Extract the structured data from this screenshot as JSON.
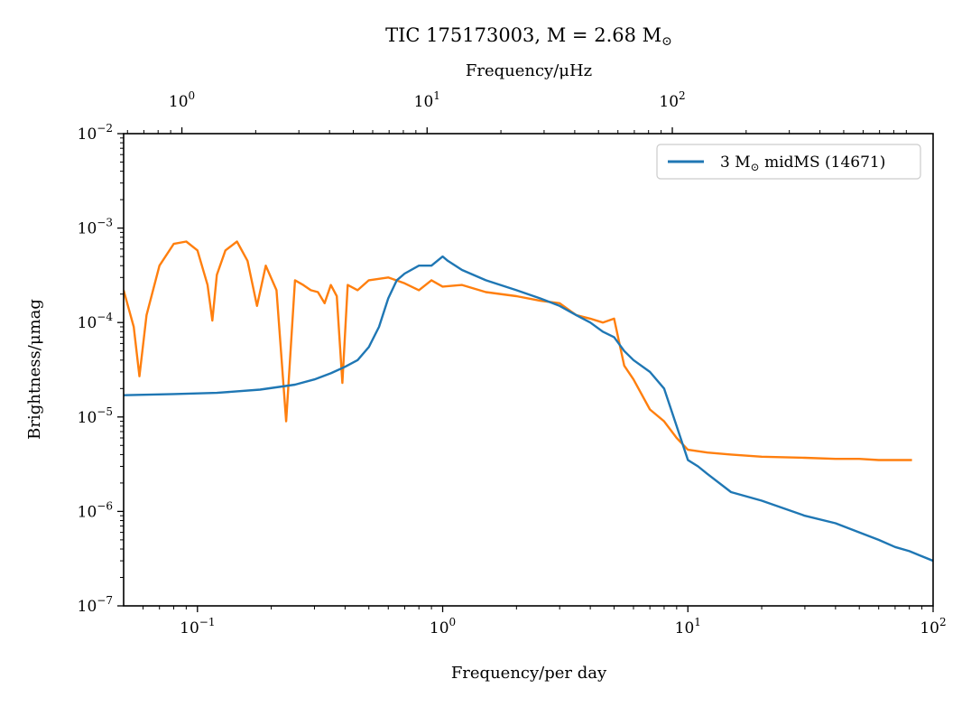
{
  "chart_data": {
    "type": "line",
    "title": "TIC 175173003, M = 2.68 M",
    "xlabel": "Frequency/per day",
    "ylabel": "Brightness/μmag",
    "top_xlabel": "Frequency/μHz",
    "xscale": "log",
    "yscale": "log",
    "xlim": [
      0.05,
      100
    ],
    "ylim": [
      1e-07,
      0.01
    ],
    "top_xlim_uHz": [
      0.5787,
      1157.4
    ],
    "x_tick_labels": [
      "10",
      "10",
      "10",
      "10"
    ],
    "x_tick_exponents": [
      "−1",
      "0",
      "1",
      "2"
    ],
    "x_ticks": [
      0.1,
      1,
      10,
      100
    ],
    "top_tick_labels": [
      "10",
      "10",
      "10"
    ],
    "top_tick_exponents": [
      "0",
      "1",
      "2"
    ],
    "top_ticks_uHz": [
      1,
      10,
      100
    ],
    "y_tick_labels": [
      "10",
      "10",
      "10",
      "10",
      "10",
      "10"
    ],
    "y_tick_exponents": [
      "−7",
      "−6",
      "−5",
      "−4",
      "−3",
      "−2"
    ],
    "y_ticks": [
      1e-07,
      1e-06,
      1e-05,
      0.0001,
      0.001,
      0.01
    ],
    "legend": {
      "placement": "top-right",
      "entries": [
        {
          "prefix": "3 M",
          "suffix": " midMS (14671)",
          "color": "#1f77b4"
        }
      ]
    },
    "series": [
      {
        "color": "#ff7f0e",
        "description_points": "observed periodogram (noisy)",
        "x": [
          0.05,
          0.055,
          0.058,
          0.062,
          0.07,
          0.08,
          0.09,
          0.1,
          0.11,
          0.115,
          0.12,
          0.13,
          0.145,
          0.16,
          0.175,
          0.19,
          0.21,
          0.23,
          0.25,
          0.27,
          0.29,
          0.31,
          0.33,
          0.35,
          0.37,
          0.39,
          0.41,
          0.45,
          0.5,
          0.6,
          0.7,
          0.8,
          0.9,
          1.0,
          1.2,
          1.5,
          2.0,
          2.5,
          3.0,
          3.5,
          4.0,
          4.5,
          5.0,
          5.5,
          6.0,
          7.0,
          8.0,
          9.0,
          10,
          12,
          15,
          20,
          30,
          40,
          50,
          60,
          70,
          82
        ],
        "y": [
          0.00022,
          9e-05,
          2.7e-05,
          0.00012,
          0.0004,
          0.00068,
          0.00072,
          0.00058,
          0.00025,
          0.000105,
          0.00032,
          0.00058,
          0.00072,
          0.00045,
          0.00015,
          0.0004,
          0.00022,
          9e-06,
          0.00028,
          0.00025,
          0.00022,
          0.00021,
          0.00016,
          0.00025,
          0.00019,
          2.3e-05,
          0.00025,
          0.00022,
          0.00028,
          0.0003,
          0.00026,
          0.00022,
          0.00028,
          0.00024,
          0.00025,
          0.00021,
          0.00019,
          0.00017,
          0.00016,
          0.00012,
          0.00011,
          0.0001,
          0.00011,
          3.5e-05,
          2.5e-05,
          1.2e-05,
          9e-06,
          6e-06,
          4.5e-06,
          4.2e-06,
          4e-06,
          3.8e-06,
          3.7e-06,
          3.6e-06,
          3.6e-06,
          3.5e-06,
          3.5e-06,
          3.5e-06
        ]
      },
      {
        "color": "#1f77b4",
        "x": [
          0.05,
          0.08,
          0.12,
          0.18,
          0.25,
          0.3,
          0.35,
          0.4,
          0.45,
          0.5,
          0.55,
          0.6,
          0.65,
          0.7,
          0.8,
          0.9,
          1.0,
          1.05,
          1.2,
          1.5,
          2.0,
          2.5,
          3.0,
          3.5,
          4.0,
          4.5,
          5.0,
          5.5,
          6.0,
          7.0,
          8.0,
          9.0,
          10,
          11,
          12,
          15,
          20,
          30,
          40,
          50,
          60,
          70,
          80,
          100
        ],
        "y": [
          1.7e-05,
          1.75e-05,
          1.8e-05,
          1.95e-05,
          2.2e-05,
          2.5e-05,
          2.9e-05,
          3.4e-05,
          4e-05,
          5.5e-05,
          9e-05,
          0.00018,
          0.00028,
          0.00033,
          0.0004,
          0.0004,
          0.0005,
          0.00045,
          0.00036,
          0.00028,
          0.00022,
          0.00018,
          0.00015,
          0.00012,
          0.0001,
          8e-05,
          7e-05,
          5e-05,
          4e-05,
          3e-05,
          2e-05,
          8e-06,
          3.5e-06,
          3e-06,
          2.5e-06,
          1.6e-06,
          1.3e-06,
          9e-07,
          7.5e-07,
          6e-07,
          5e-07,
          4.2e-07,
          3.8e-07,
          3e-07
        ]
      }
    ],
    "grid": false
  }
}
